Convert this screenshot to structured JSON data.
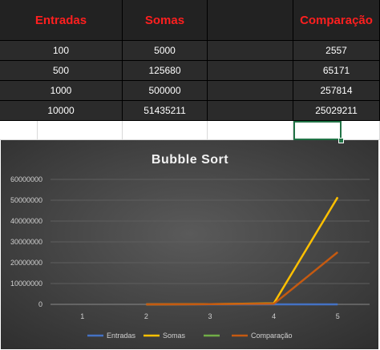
{
  "table": {
    "headers": [
      "Entradas",
      "Somas",
      "",
      "Comparação"
    ],
    "rows": [
      [
        "100",
        "5000",
        "",
        "2557"
      ],
      [
        "500",
        "125680",
        "",
        "65171"
      ],
      [
        "1000",
        "500000",
        "",
        "257814"
      ],
      [
        "10000",
        "51435211",
        "",
        "25029211"
      ]
    ]
  },
  "colors": {
    "header_text": "#ff1f1f",
    "cell_bg": "#2b2b2b",
    "selection": "#217346"
  },
  "chart_data": {
    "type": "line",
    "title": "Bubble Sort",
    "x": [
      "1",
      "2",
      "3",
      "4",
      "5"
    ],
    "ylim": [
      0,
      60000000
    ],
    "yticks": [
      "0",
      "10000000",
      "20000000",
      "30000000",
      "40000000",
      "50000000",
      "60000000"
    ],
    "grid": true,
    "legend_position": "bottom",
    "series": [
      {
        "name": "Entradas",
        "color": "#4472c4",
        "values": [
          null,
          100,
          500,
          1000,
          10000
        ]
      },
      {
        "name": "Somas",
        "color": "#ffc000",
        "values": [
          null,
          5000,
          125680,
          500000,
          51435211
        ]
      },
      {
        "name": "",
        "color": "#70ad47",
        "values": [
          null,
          null,
          null,
          null,
          null
        ]
      },
      {
        "name": "Comparação",
        "color": "#c55a11",
        "values": [
          null,
          2557,
          65171,
          257814,
          25029211
        ]
      }
    ]
  }
}
